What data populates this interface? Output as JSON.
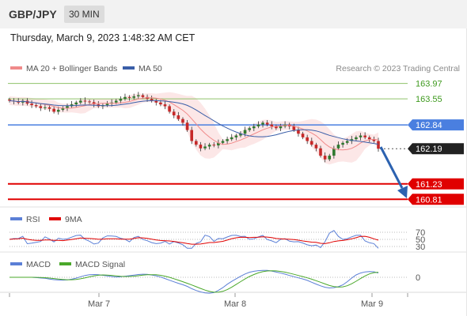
{
  "header": {
    "pair": "GBP/JPY",
    "timeframe": "30 MIN"
  },
  "timestamp": "Thursday, March 9, 2023 1:48:32 AM CET",
  "legend": {
    "ma20": "MA 20 + Bollinger Bands",
    "ma50": "MA 50",
    "copyright": "Research © 2023 Trading Central"
  },
  "rsi_legend": {
    "rsi": "RSI",
    "ma9": "9MA"
  },
  "macd_legend": {
    "macd": "MACD",
    "signal": "MACD Signal"
  },
  "colors": {
    "ma20": "#f08a8a",
    "ma50": "#3a5ea8",
    "up": "#2f7a2f",
    "down": "#c62828",
    "resistance": "#8fc36a",
    "pivot": "#4a7fe0",
    "support": "#e00000",
    "arrow": "#2c62b0"
  },
  "chart_data": [
    {
      "type": "line",
      "title": "GBP/JPY",
      "series": [
        {
          "name": "MA 20 + Bollinger Bands"
        },
        {
          "name": "MA 50"
        }
      ],
      "x_ticks": [
        "Mar 7",
        "Mar 8",
        "Mar 9"
      ],
      "levels": [
        {
          "label": "163.97",
          "value": 163.97,
          "kind": "resistance"
        },
        {
          "label": "163.55",
          "value": 163.55,
          "kind": "resistance"
        },
        {
          "label": "162.84",
          "value": 162.84,
          "kind": "pivot"
        },
        {
          "label": "162.19",
          "value": 162.19,
          "kind": "current"
        },
        {
          "label": "161.23",
          "value": 161.23,
          "kind": "support"
        },
        {
          "label": "160.81",
          "value": 160.81,
          "kind": "support"
        }
      ],
      "close": [
        163.5,
        163.48,
        163.45,
        163.5,
        163.42,
        163.38,
        163.35,
        163.3,
        163.32,
        163.28,
        163.2,
        163.25,
        163.3,
        163.35,
        163.4,
        163.45,
        163.5,
        163.48,
        163.46,
        163.4,
        163.35,
        163.38,
        163.42,
        163.45,
        163.5,
        163.55,
        163.6,
        163.58,
        163.62,
        163.65,
        163.6,
        163.55,
        163.5,
        163.45,
        163.4,
        163.35,
        163.2,
        163.1,
        163.0,
        162.9,
        162.7,
        162.4,
        162.3,
        162.2,
        162.25,
        162.3,
        162.28,
        162.35,
        162.4,
        162.45,
        162.5,
        162.55,
        162.6,
        162.7,
        162.75,
        162.8,
        162.85,
        162.9,
        162.85,
        162.8,
        162.75,
        162.8,
        162.85,
        162.8,
        162.7,
        162.6,
        162.5,
        162.4,
        162.3,
        162.2,
        162.0,
        161.9,
        162.0,
        162.2,
        162.3,
        162.35,
        162.4,
        162.45,
        162.5,
        162.55,
        162.5,
        162.45,
        162.4,
        162.19
      ],
      "ylim": [
        160.6,
        164.2
      ]
    },
    {
      "type": "line",
      "title": "RSI",
      "series": [
        {
          "name": "RSI"
        },
        {
          "name": "9MA"
        }
      ],
      "y_ticks": [
        70,
        50,
        30
      ],
      "ylim": [
        0,
        100
      ]
    },
    {
      "type": "line",
      "title": "MACD",
      "series": [
        {
          "name": "MACD"
        },
        {
          "name": "MACD Signal"
        }
      ],
      "y_ticks": [
        0
      ]
    }
  ]
}
